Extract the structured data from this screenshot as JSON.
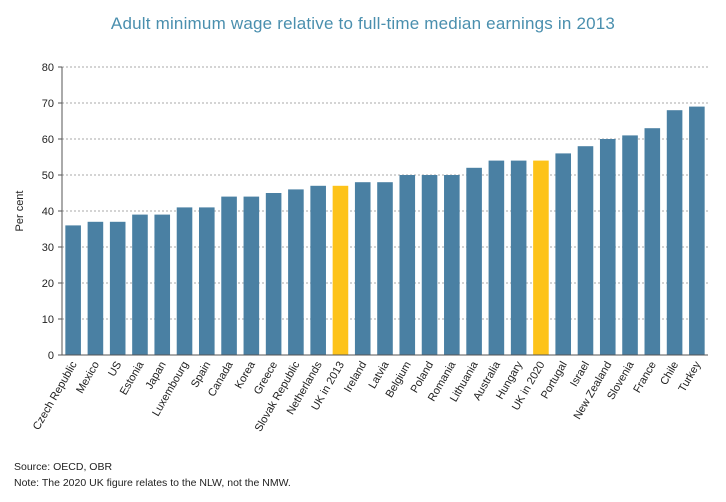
{
  "chart_data": {
    "type": "bar",
    "title": "Adult minimum wage relative to full-time median earnings in 2013",
    "ylabel": "Per cent",
    "xlabel": "",
    "ylim": [
      0,
      80
    ],
    "yticks": [
      0,
      10,
      20,
      30,
      40,
      50,
      60,
      70,
      80
    ],
    "grid": true,
    "categories": [
      "Czech Republic",
      "Mexico",
      "US",
      "Estonia",
      "Japan",
      "Luxembourg",
      "Spain",
      "Canada",
      "Korea",
      "Greece",
      "Slovak Republic",
      "Netherlands",
      "UK in 2013",
      "Ireland",
      "Latvia",
      "Belgium",
      "Poland",
      "Romania",
      "Lithuania",
      "Australia",
      "Hungary",
      "UK in 2020",
      "Portugal",
      "Israel",
      "New Zealand",
      "Slovenia",
      "France",
      "Chile",
      "Turkey"
    ],
    "values": [
      36,
      37,
      37,
      39,
      39,
      41,
      41,
      44,
      44,
      45,
      46,
      47,
      47,
      48,
      48,
      50,
      50,
      50,
      52,
      54,
      54,
      54,
      56,
      58,
      60,
      61,
      63,
      68,
      69
    ],
    "highlight": [
      "UK in 2013",
      "UK in 2020"
    ],
    "colors": {
      "bar": "#4a80a3",
      "highlight": "#fdc31a",
      "grid": "#8c8c8c",
      "axis": "#555555",
      "title": "#4a8fae"
    }
  },
  "notes": {
    "source": "Source: OECD, OBR",
    "note": "Note: The 2020 UK figure relates to the NLW, not the NMW."
  }
}
